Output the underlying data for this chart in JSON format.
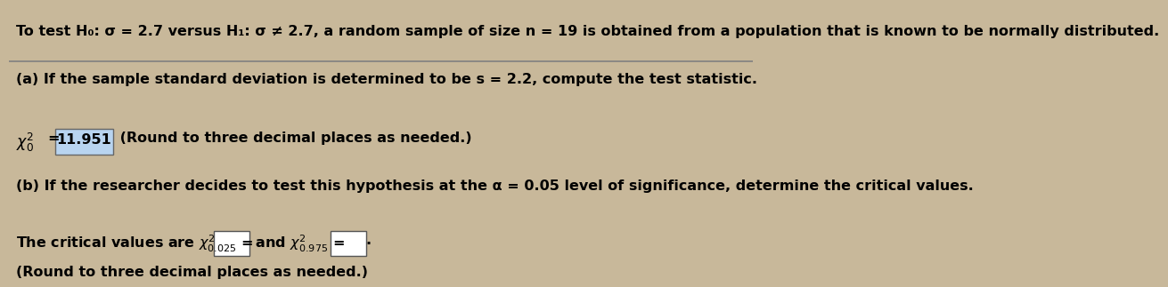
{
  "bg_color": "#c8b89a",
  "text_color": "#000000",
  "line1": "To test H₀: σ = 2.7 versus H₁: σ ≠ 2.7, a random sample of size n = 19 is obtained from a population that is known to be normally distributed.",
  "line2": "(a) If the sample standard deviation is determined to be s = 2.2, compute the test statistic.",
  "line3_value": "11.951",
  "line3_suffix": " (Round to three decimal places as needed.)",
  "line4": "(b) If the researcher decides to test this hypothesis at the α = 0.05 level of significance, determine the critical values.",
  "line6": "(Round to three decimal places as needed.)",
  "highlight_color": "#b8d4f0",
  "fontsize_main": 11.5
}
